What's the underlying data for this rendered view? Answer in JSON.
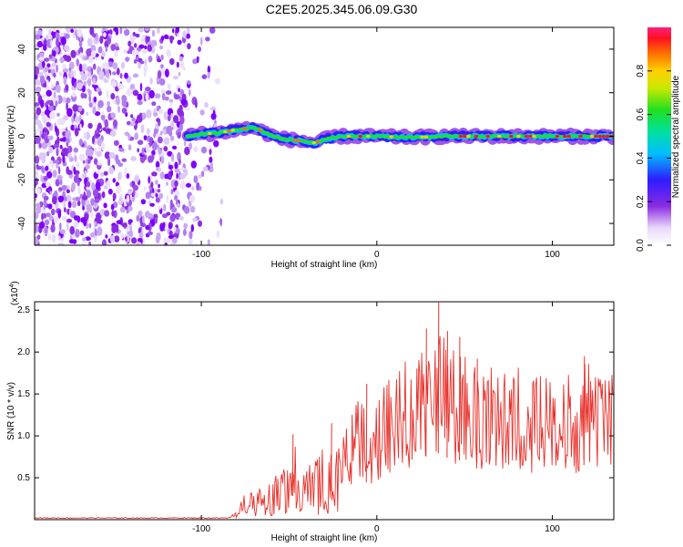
{
  "title": "C2E5.2025.345.06.09.G30",
  "colors": {
    "signal": "#e8302a",
    "noise": "#8a2be2",
    "axis": "#000000"
  },
  "chart_data": [
    {
      "type": "heatmap",
      "name": "spectrogram",
      "xlabel": "Height of straight line (km)",
      "ylabel": "Frequency (Hz)",
      "xlim": [
        -195,
        135
      ],
      "ylim": [
        -50,
        50
      ],
      "xticks": [
        -100,
        0,
        100
      ],
      "yticks": [
        -40,
        -20,
        0,
        20,
        40
      ],
      "noise_region_x": [
        -195,
        -88
      ],
      "signal_start_x": -108,
      "signal_ridge": [
        {
          "x": -108,
          "f": 0
        },
        {
          "x": -100,
          "f": 1
        },
        {
          "x": -90,
          "f": 1.5
        },
        {
          "x": -80,
          "f": 3
        },
        {
          "x": -70,
          "f": 4
        },
        {
          "x": -62,
          "f": 1
        },
        {
          "x": -55,
          "f": -1
        },
        {
          "x": -45,
          "f": -2
        },
        {
          "x": -35,
          "f": -3
        },
        {
          "x": -28,
          "f": -1
        },
        {
          "x": -20,
          "f": 0
        },
        {
          "x": 0,
          "f": 0
        },
        {
          "x": 20,
          "f": -0.5
        },
        {
          "x": 40,
          "f": 0
        },
        {
          "x": 60,
          "f": 0
        },
        {
          "x": 80,
          "f": 0
        },
        {
          "x": 100,
          "f": 0
        },
        {
          "x": 120,
          "f": 0
        },
        {
          "x": 135,
          "f": 0
        }
      ],
      "colorbar": {
        "label": "Normalized spectral amplitude",
        "range": [
          0,
          1
        ],
        "ticks": [
          "0.0",
          "0.2",
          "0.4",
          "0.6",
          "0.8"
        ],
        "tick_values": [
          0.0,
          0.2,
          0.4,
          0.6,
          0.8
        ]
      }
    },
    {
      "type": "line",
      "name": "snr",
      "xlabel": "Height of straight line (km)",
      "ylabel": "SNR (10 * v/v)",
      "multiplier_label": "(x10",
      "multiplier_exp": "4",
      "xlim": [
        -195,
        135
      ],
      "ylim": [
        0,
        2.6
      ],
      "xticks": [
        -100,
        0,
        100
      ],
      "yticks": [
        0.5,
        1.0,
        1.5,
        2.0,
        2.5
      ],
      "ytick_labels": [
        "0.5",
        "1.0",
        "1.5",
        "2.0",
        "2.5"
      ],
      "envelope": [
        {
          "x": -195,
          "y": 0.02
        },
        {
          "x": -85,
          "y": 0.02
        },
        {
          "x": -80,
          "y": 0.1
        },
        {
          "x": -72,
          "y": 0.42
        },
        {
          "x": -66,
          "y": 0.32
        },
        {
          "x": -60,
          "y": 0.42
        },
        {
          "x": -50,
          "y": 0.58
        },
        {
          "x": -45,
          "y": 0.9
        },
        {
          "x": -40,
          "y": 0.55
        },
        {
          "x": -34,
          "y": 0.65
        },
        {
          "x": -28,
          "y": 0.9
        },
        {
          "x": -22,
          "y": 0.75
        },
        {
          "x": -16,
          "y": 1.1
        },
        {
          "x": -10,
          "y": 1.25
        },
        {
          "x": -4,
          "y": 1.05
        },
        {
          "x": 2,
          "y": 1.4
        },
        {
          "x": 10,
          "y": 1.55
        },
        {
          "x": 18,
          "y": 1.7
        },
        {
          "x": 26,
          "y": 1.85
        },
        {
          "x": 34,
          "y": 2.0
        },
        {
          "x": 42,
          "y": 1.8
        },
        {
          "x": 50,
          "y": 1.75
        },
        {
          "x": 60,
          "y": 1.65
        },
        {
          "x": 70,
          "y": 1.6
        },
        {
          "x": 80,
          "y": 1.6
        },
        {
          "x": 90,
          "y": 1.55
        },
        {
          "x": 100,
          "y": 1.6
        },
        {
          "x": 110,
          "y": 1.55
        },
        {
          "x": 120,
          "y": 1.65
        },
        {
          "x": 135,
          "y": 1.55
        }
      ],
      "peaks": [
        {
          "x": 35,
          "y": 2.6
        },
        {
          "x": 28,
          "y": 2.28
        },
        {
          "x": 40,
          "y": 2.25
        },
        {
          "x": 47,
          "y": 2.18
        },
        {
          "x": 57,
          "y": 1.92
        },
        {
          "x": -48,
          "y": 1.02
        },
        {
          "x": -26,
          "y": 1.15
        },
        {
          "x": -6,
          "y": 1.62
        },
        {
          "x": 118,
          "y": 1.95
        }
      ],
      "noise_baseline": 0.02
    }
  ]
}
